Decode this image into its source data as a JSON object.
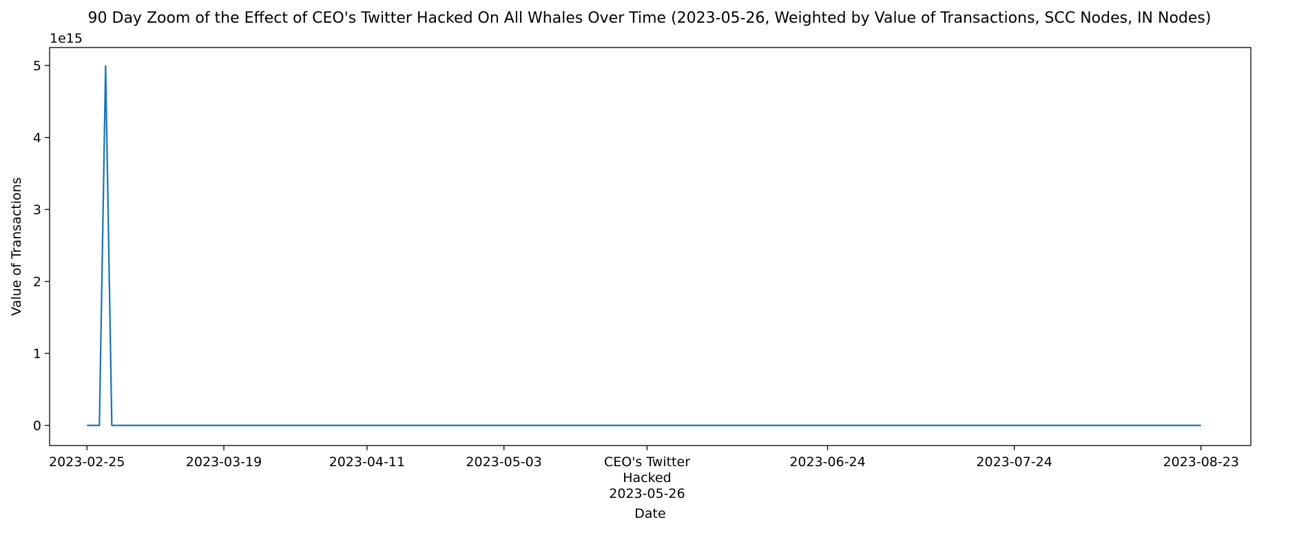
{
  "chart_data": {
    "type": "line",
    "title": "90 Day Zoom of the Effect of CEO's Twitter Hacked On All Whales Over Time (2023-05-26, Weighted by Value of Transactions, SCC Nodes, IN Nodes)",
    "xlabel": "Date",
    "ylabel": "Value of Transactions",
    "y_offset_text": "1e15",
    "y_scale_factor": 1000000000000000.0,
    "xlim": [
      "2023-02-19",
      "2023-08-31"
    ],
    "ylim": [
      -280000000000000.0,
      5250000000000000.0
    ],
    "grid": false,
    "x_ticks": [
      {
        "date": "2023-02-25",
        "lines": [
          "2023-02-25"
        ]
      },
      {
        "date": "2023-03-19",
        "lines": [
          "2023-03-19"
        ]
      },
      {
        "date": "2023-04-11",
        "lines": [
          "2023-04-11"
        ]
      },
      {
        "date": "2023-05-03",
        "lines": [
          "2023-05-03"
        ]
      },
      {
        "date": "2023-05-26",
        "lines": [
          "CEO's Twitter",
          "Hacked",
          "2023-05-26"
        ]
      },
      {
        "date": "2023-06-24",
        "lines": [
          "2023-06-24"
        ]
      },
      {
        "date": "2023-07-24",
        "lines": [
          "2023-07-24"
        ]
      },
      {
        "date": "2023-08-23",
        "lines": [
          "2023-08-23"
        ]
      }
    ],
    "y_ticks": [
      {
        "value": 0,
        "label": "0"
      },
      {
        "value": 1000000000000000.0,
        "label": "1"
      },
      {
        "value": 2000000000000000.0,
        "label": "2"
      },
      {
        "value": 3000000000000000.0,
        "label": "3"
      },
      {
        "value": 4000000000000000.0,
        "label": "4"
      },
      {
        "value": 5000000000000000.0,
        "label": "5"
      }
    ],
    "series": [
      {
        "color": "#1f77b4",
        "points": [
          {
            "x": "2023-02-25",
            "y": 0
          },
          {
            "x": "2023-02-27",
            "y": 0
          },
          {
            "x": "2023-02-28",
            "y": 5000000000000000.0
          },
          {
            "x": "2023-03-01",
            "y": 0
          },
          {
            "x": "2023-08-23",
            "y": 0
          }
        ]
      }
    ]
  }
}
